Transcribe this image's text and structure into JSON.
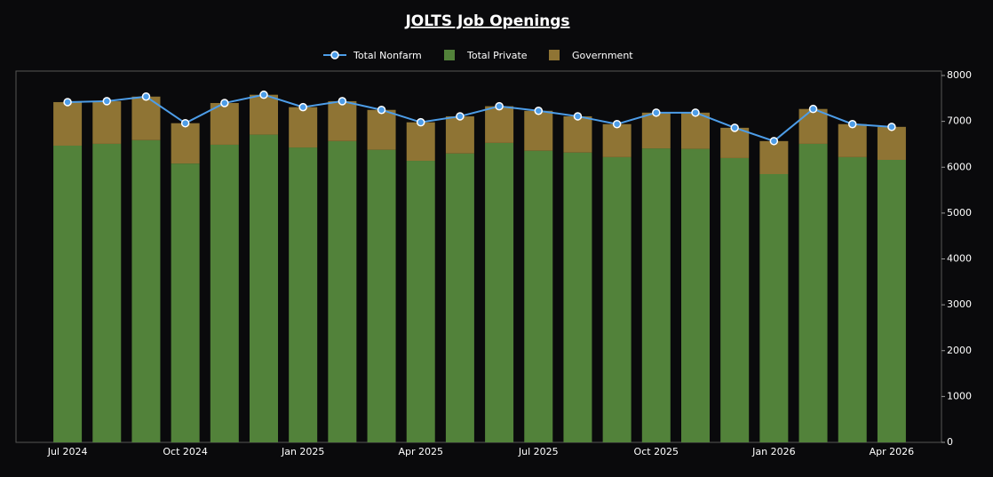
{
  "chart_data": {
    "type": "bar",
    "stacked": true,
    "title": "JOLTS Job Openings",
    "categories": [
      "Jul 2024",
      null,
      null,
      "Oct 2024",
      null,
      null,
      "Jan 2025",
      null,
      null,
      "Apr 2025",
      null,
      null,
      "Jul 2025",
      null,
      null,
      "Oct 2025",
      null,
      null,
      "Jan 2026",
      null,
      null,
      "Apr 2026"
    ],
    "series": [
      {
        "name": "Total Nonfarm",
        "type": "line",
        "color": "#4d9de8",
        "values": [
          7420,
          7440,
          7540,
          6960,
          7400,
          7580,
          7310,
          7440,
          7250,
          6980,
          7110,
          7330,
          7230,
          7110,
          6940,
          7190,
          7190,
          6860,
          6570,
          7270,
          6940,
          6880
        ]
      },
      {
        "name": "Total Private",
        "type": "bar",
        "color": "#52823a",
        "values": [
          6470,
          6510,
          6590,
          6080,
          6490,
          6710,
          6430,
          6570,
          6380,
          6140,
          6300,
          6530,
          6360,
          6320,
          6220,
          6410,
          6400,
          6200,
          5850,
          6510,
          6220,
          6160
        ]
      },
      {
        "name": "Government",
        "type": "bar",
        "color": "#8f7434",
        "values": [
          950,
          930,
          950,
          880,
          910,
          870,
          880,
          870,
          870,
          840,
          810,
          800,
          870,
          790,
          720,
          780,
          790,
          660,
          720,
          760,
          720,
          720
        ]
      }
    ],
    "ylim": [
      0,
      8000
    ],
    "yticks": [
      0,
      1000,
      2000,
      3000,
      4000,
      5000,
      6000,
      7000,
      8000
    ],
    "y_axis_side": "right",
    "grid": false
  }
}
